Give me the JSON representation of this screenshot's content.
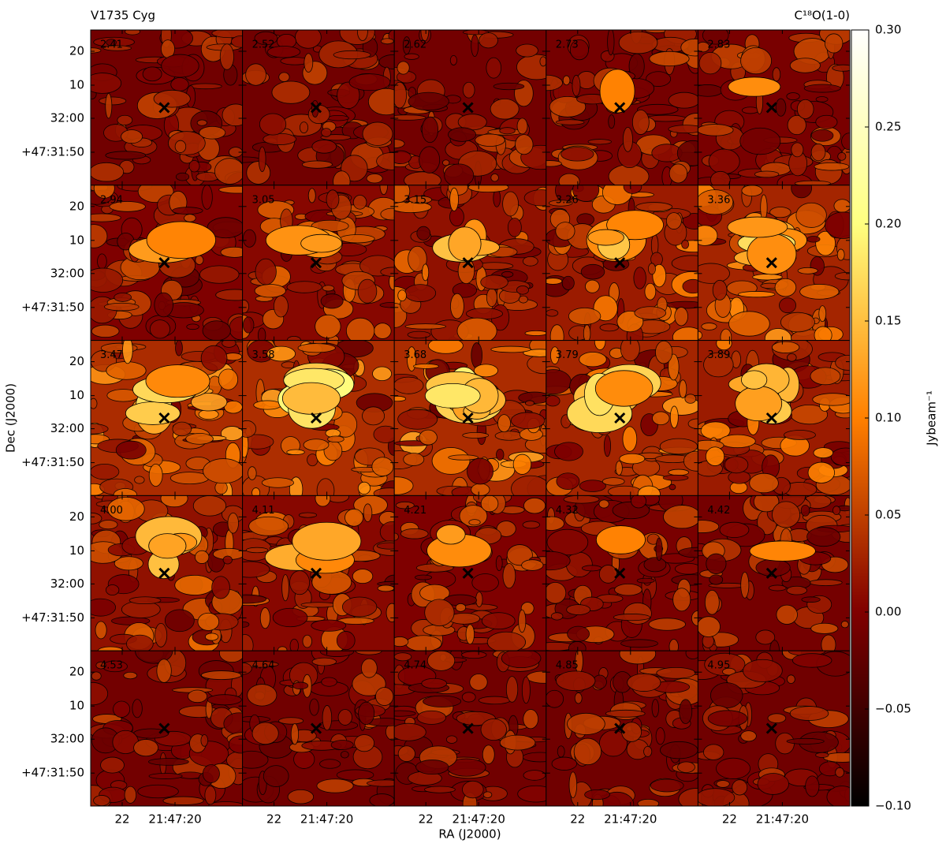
{
  "chart_data": {
    "type": "channel_map",
    "title": "V1735 Cyg",
    "line_label": "C¹⁸O(1-0)",
    "xlabel": "RA (J2000)",
    "ylabel": "Dec (J2000)",
    "colorbar_label": "Jybeam⁻¹",
    "colormap": "afmhot",
    "clim": [
      -0.1,
      0.3
    ],
    "cticks": [
      {
        "value": -0.1,
        "label": "−0.10"
      },
      {
        "value": -0.05,
        "label": "−0.05"
      },
      {
        "value": 0,
        "label": "0.00"
      },
      {
        "value": 0.05,
        "label": "0.05"
      },
      {
        "value": 0.1,
        "label": "0.10"
      },
      {
        "value": 0.15,
        "label": "0.15"
      },
      {
        "value": 0.2,
        "label": "0.20"
      },
      {
        "value": 0.25,
        "label": "0.25"
      },
      {
        "value": 0.3,
        "label": "0.30"
      }
    ],
    "xtick_labels": [
      "22",
      "21:47:20"
    ],
    "ytick_labels": [
      "20",
      "10",
      "32:00",
      "+47:31:50"
    ],
    "panels": [
      "2.41",
      "2.52",
      "2.62",
      "2.73",
      "2.83",
      "2.94",
      "3.05",
      "3.15",
      "3.26",
      "3.36",
      "3.47",
      "3.58",
      "3.68",
      "3.79",
      "3.89",
      "4.00",
      "4.11",
      "4.21",
      "4.32",
      "4.42",
      "4.53",
      "4.64",
      "4.74",
      "4.85",
      "4.95"
    ]
  }
}
